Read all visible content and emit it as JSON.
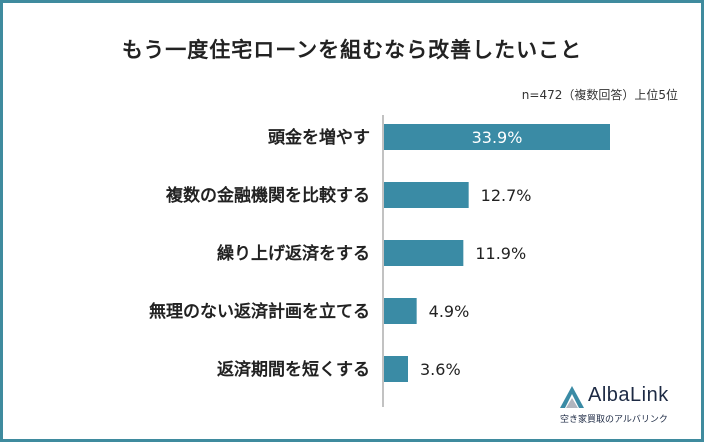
{
  "chart_data": {
    "type": "bar",
    "orientation": "horizontal",
    "title": "もう一度住宅ローンを組むなら改善したいこと",
    "note": "n=472（複数回答）上位5位",
    "categories": [
      "頭金を増やす",
      "複数の金融機関を比較する",
      "繰り上げ返済をする",
      "無理のない返済計画を立てる",
      "返済期間を短くする"
    ],
    "values": [
      33.9,
      12.7,
      11.9,
      4.9,
      3.6
    ],
    "value_labels": [
      "33.9%",
      "12.7%",
      "11.9%",
      "4.9%",
      "3.6%"
    ],
    "unit": "%",
    "xlim": [
      0,
      33.9
    ],
    "bar_color": "#3a8ba5",
    "grid": false
  },
  "brand": {
    "name": "AlbaLink",
    "tagline": "空き家買取のアルバリンク",
    "color": "#1d2a44"
  },
  "frame_color": "#3f8b9e"
}
